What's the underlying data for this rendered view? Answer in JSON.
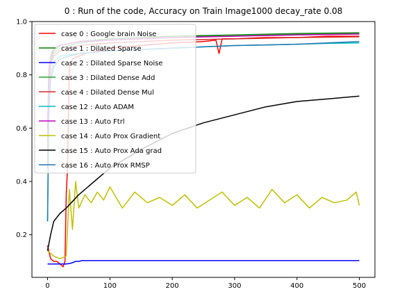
{
  "chart_data": {
    "type": "line",
    "title": "0 : Run of the code, Accuracy on Train Image1000 decay_rate 0.08",
    "xlabel": "",
    "ylabel": "",
    "xlim": [
      -25,
      525
    ],
    "ylim": [
      0.04,
      1.0
    ],
    "xticks": [
      0,
      100,
      200,
      300,
      400,
      500
    ],
    "yticks": [
      0.2,
      0.4,
      0.6,
      0.8,
      1.0
    ],
    "xtick_labels": [
      "0",
      "100",
      "200",
      "300",
      "400",
      "500"
    ],
    "ytick_labels": [
      "0.2",
      "0.4",
      "0.6",
      "0.8",
      "1.0"
    ],
    "grid": false,
    "legend_position": "upper-left",
    "series": [
      {
        "name": "case 0 : Google brain Noise",
        "color": "#ff0000",
        "x": [
          0,
          5,
          10,
          15,
          20,
          25,
          28,
          30,
          32,
          35,
          40,
          60,
          100,
          150,
          200,
          250,
          270,
          275,
          280,
          300,
          350,
          400,
          450,
          500
        ],
        "y": [
          0.16,
          0.11,
          0.1,
          0.1,
          0.09,
          0.08,
          0.1,
          0.35,
          0.45,
          0.83,
          0.86,
          0.88,
          0.9,
          0.91,
          0.92,
          0.925,
          0.93,
          0.88,
          0.935,
          0.935,
          0.94,
          0.94,
          0.945,
          0.945
        ]
      },
      {
        "name": "case 1 : Dilated Sparse",
        "color": "#008000",
        "x": [
          0,
          2,
          5,
          10,
          20,
          50,
          100,
          200,
          300,
          400,
          500
        ],
        "y": [
          0.55,
          0.8,
          0.86,
          0.89,
          0.91,
          0.925,
          0.935,
          0.945,
          0.95,
          0.955,
          0.958
        ]
      },
      {
        "name": "case 2 : Dilated Sparse Noise",
        "color": "#0000ff",
        "x": [
          0,
          10,
          20,
          30,
          35,
          40,
          45,
          50,
          55,
          100,
          200,
          300,
          400,
          500
        ],
        "y": [
          0.09,
          0.09,
          0.09,
          0.09,
          0.092,
          0.095,
          0.1,
          0.1,
          0.103,
          0.103,
          0.103,
          0.103,
          0.103,
          0.103
        ]
      },
      {
        "name": "case 3 : Dilated Dense Add",
        "color": "#2ca02c",
        "x": [
          0,
          2,
          5,
          10,
          20,
          50,
          100,
          200,
          300,
          400,
          500
        ],
        "y": [
          0.5,
          0.78,
          0.85,
          0.88,
          0.9,
          0.92,
          0.93,
          0.94,
          0.948,
          0.952,
          0.955
        ]
      },
      {
        "name": "case 4 : Dilated Dense Mul",
        "color": "#d62728",
        "x": [
          0,
          2,
          5,
          10,
          20,
          50,
          100,
          200,
          300,
          400,
          500
        ],
        "y": [
          0.45,
          0.75,
          0.84,
          0.87,
          0.89,
          0.91,
          0.92,
          0.93,
          0.935,
          0.94,
          0.943
        ]
      },
      {
        "name": "case 12 : Auto ADAM",
        "color": "#00bfbf",
        "x": [
          0,
          2,
          5,
          10,
          20,
          50,
          100,
          200,
          250,
          300,
          350,
          400,
          450,
          500
        ],
        "y": [
          0.25,
          0.7,
          0.8,
          0.85,
          0.87,
          0.88,
          0.89,
          0.9,
          0.905,
          0.91,
          0.912,
          0.915,
          0.918,
          0.92
        ]
      },
      {
        "name": "case 13 : Auto Ftrl",
        "color": "#bf00bf",
        "x": [
          0,
          2,
          5,
          10,
          20,
          50,
          100,
          200,
          300,
          400,
          500
        ],
        "y": [
          0.6,
          0.82,
          0.87,
          0.9,
          0.91,
          0.925,
          0.93,
          0.94,
          0.945,
          0.95,
          0.953
        ]
      },
      {
        "name": "case 14 : Auto Prox Gradient",
        "color": "#bfbf00",
        "x": [
          0,
          10,
          20,
          30,
          35,
          40,
          45,
          50,
          60,
          70,
          80,
          90,
          100,
          120,
          140,
          160,
          180,
          200,
          220,
          240,
          260,
          280,
          300,
          320,
          340,
          360,
          380,
          400,
          420,
          440,
          460,
          480,
          495,
          500
        ],
        "y": [
          0.14,
          0.12,
          0.11,
          0.12,
          0.37,
          0.22,
          0.4,
          0.3,
          0.35,
          0.32,
          0.36,
          0.33,
          0.38,
          0.3,
          0.36,
          0.32,
          0.34,
          0.31,
          0.35,
          0.3,
          0.33,
          0.36,
          0.31,
          0.34,
          0.3,
          0.37,
          0.32,
          0.35,
          0.3,
          0.34,
          0.32,
          0.33,
          0.36,
          0.31
        ]
      },
      {
        "name": "case 15 : Auto Prox Ada grad",
        "color": "#000000",
        "x": [
          0,
          5,
          10,
          20,
          30,
          50,
          75,
          100,
          150,
          200,
          250,
          300,
          350,
          400,
          450,
          500
        ],
        "y": [
          0.14,
          0.2,
          0.25,
          0.28,
          0.3,
          0.35,
          0.4,
          0.45,
          0.52,
          0.58,
          0.62,
          0.65,
          0.68,
          0.7,
          0.71,
          0.72
        ]
      },
      {
        "name": "case 16 : Auto Prox RMSP",
        "color": "#1f77b4",
        "x": [
          0,
          2,
          5,
          10,
          20,
          50,
          100,
          200,
          300,
          400,
          500
        ],
        "y": [
          0.25,
          0.65,
          0.78,
          0.83,
          0.86,
          0.88,
          0.89,
          0.9,
          0.91,
          0.915,
          0.925
        ]
      }
    ]
  }
}
